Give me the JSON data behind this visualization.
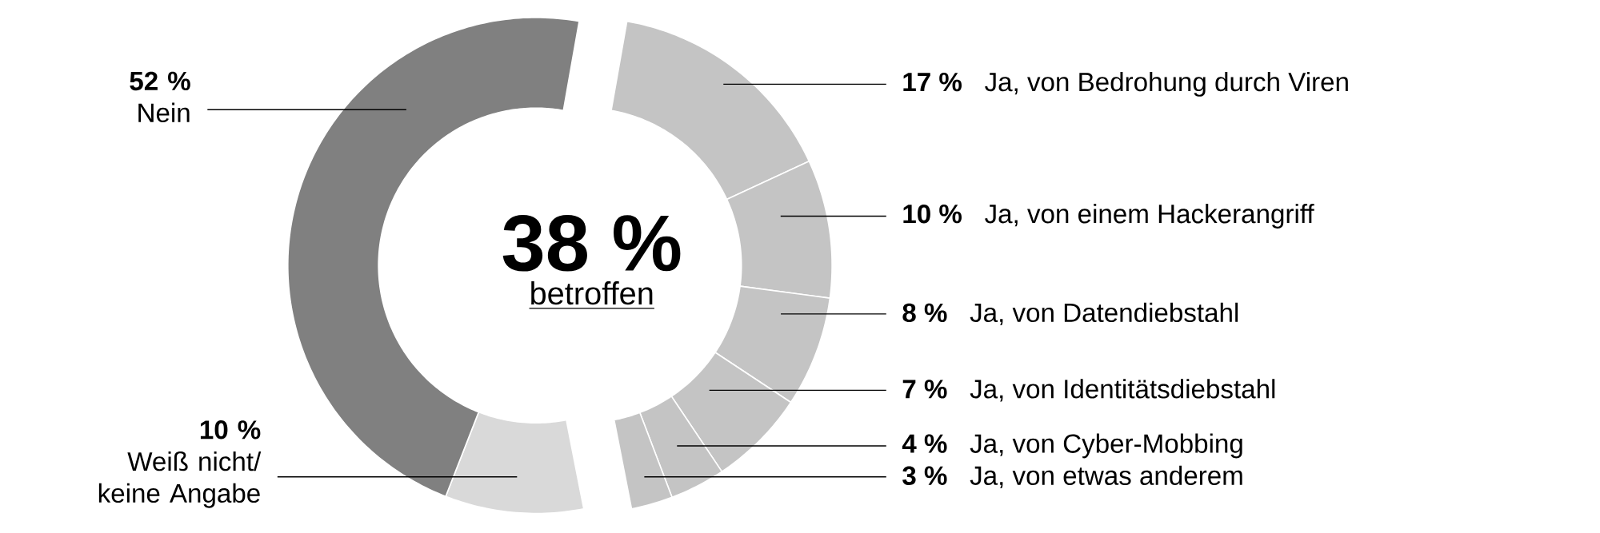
{
  "chart_data": {
    "type": "donut",
    "categories": [
      "Ja, von Bedrohung durch Viren",
      "Ja, von einem Hackerangriff",
      "Ja, von Datendiebstahl",
      "Ja, von Identitätsdiebstahl",
      "Ja, von Cyber-Mobbing",
      "Ja, von etwas anderem",
      "Weiß nicht/ keine Angabe",
      "Nein"
    ],
    "values": [
      17,
      10,
      8,
      7,
      4,
      3,
      10,
      52
    ],
    "value_labels": [
      "17 %",
      "10 %",
      "8 %",
      "7 %",
      "4 %",
      "3 %",
      "10 %",
      "52 %"
    ],
    "colors": [
      "#c4c4c4",
      "#c4c4c4",
      "#c4c4c4",
      "#c4c4c4",
      "#c4c4c4",
      "#c4c4c4",
      "#d9d9d9",
      "#808080"
    ],
    "annotations": [
      "38 %",
      "betroffen"
    ]
  }
}
